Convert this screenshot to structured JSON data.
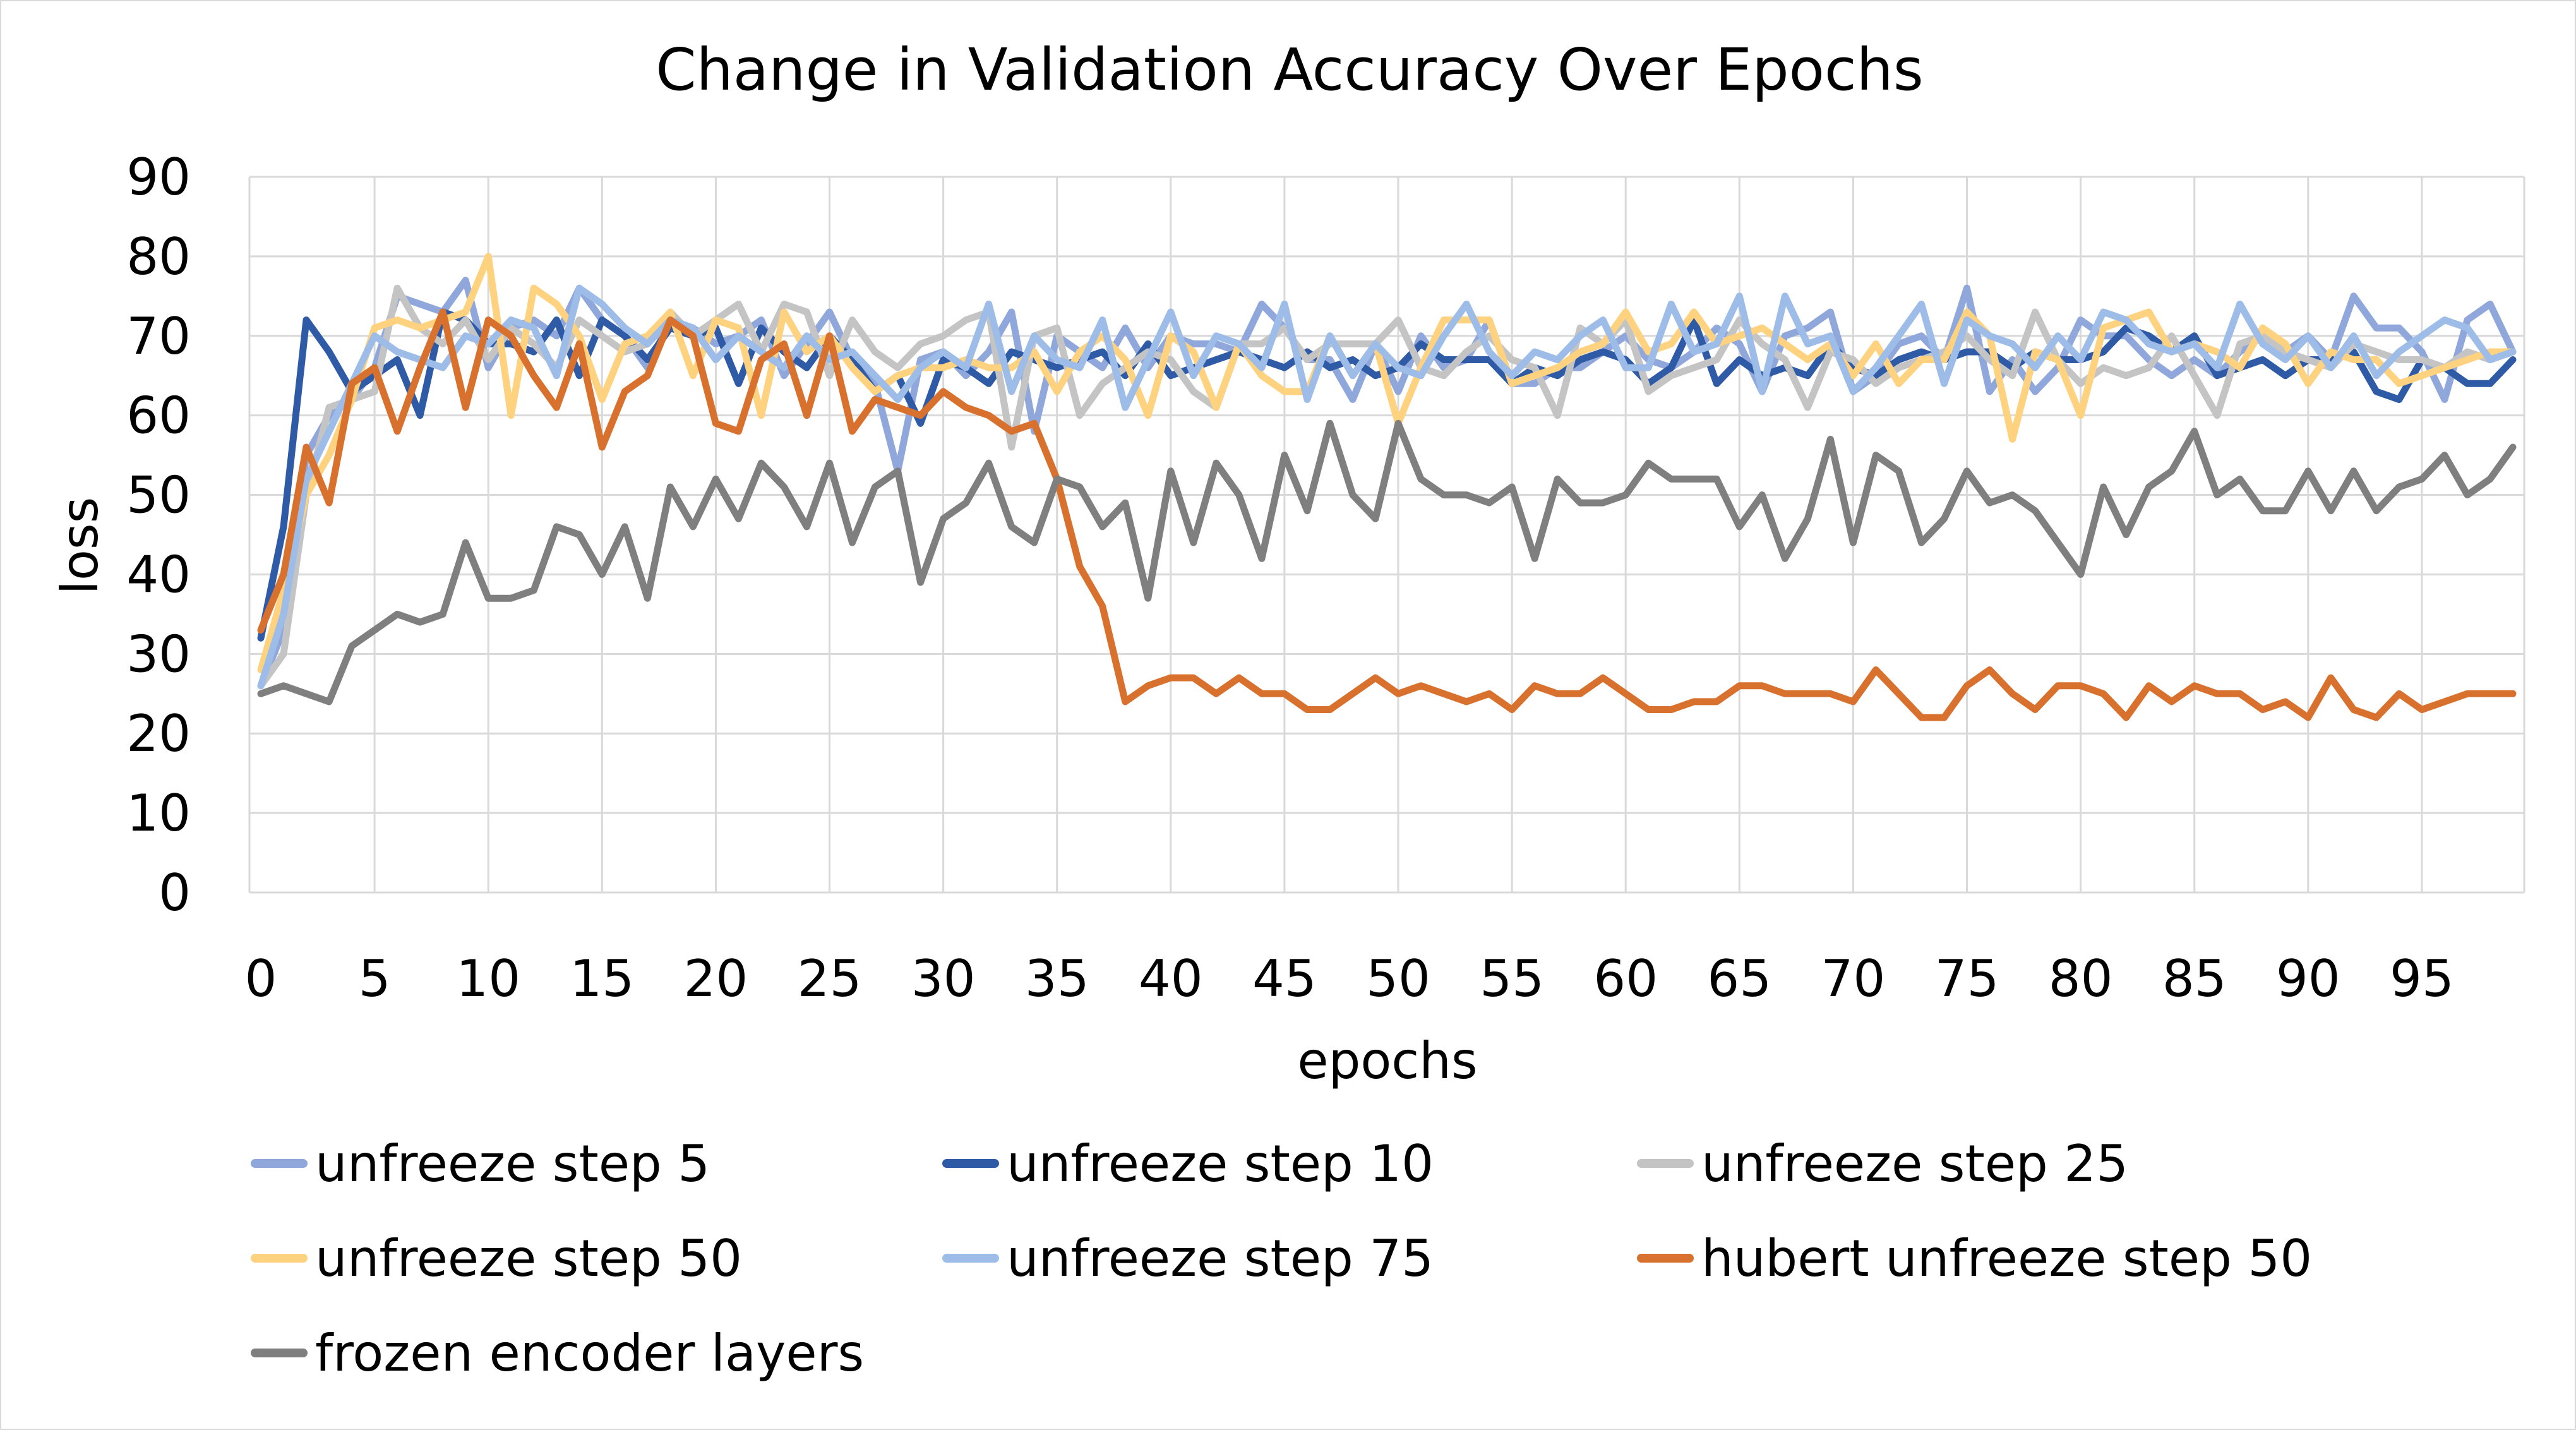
{
  "chart_data": {
    "type": "line",
    "title": "Change in Validation Accuracy Over Epochs",
    "xlabel": "epochs",
    "ylabel": "loss",
    "ylim": [
      0,
      90
    ],
    "yticks": [
      0,
      10,
      20,
      30,
      40,
      50,
      60,
      70,
      80,
      90
    ],
    "xlim": [
      0,
      99
    ],
    "xticks": [
      0,
      5,
      10,
      15,
      20,
      25,
      30,
      35,
      40,
      45,
      50,
      55,
      60,
      65,
      70,
      75,
      80,
      85,
      90,
      95
    ],
    "grid": true,
    "legend_position": "bottom",
    "series": [
      {
        "name": "unfreeze step 5",
        "color": "#8fa7da",
        "values": [
          26,
          33,
          55,
          60,
          62,
          66,
          75,
          74,
          73,
          77,
          66,
          71,
          72,
          70,
          76,
          72,
          70,
          66,
          72,
          71,
          69,
          70,
          72,
          65,
          69,
          73,
          67,
          64,
          53,
          67,
          68,
          65,
          68,
          73,
          58,
          70,
          68,
          66,
          71,
          66,
          70,
          69,
          69,
          68,
          74,
          71,
          67,
          67,
          62,
          69,
          63,
          70,
          66,
          67,
          72,
          64,
          64,
          66,
          66,
          68,
          70,
          67,
          66,
          68,
          71,
          69,
          63,
          70,
          71,
          73,
          63,
          65,
          69,
          70,
          67,
          76,
          63,
          67,
          63,
          66,
          72,
          70,
          70,
          67,
          65,
          67,
          65,
          68,
          70,
          68,
          70,
          67,
          75,
          71,
          71,
          68,
          62,
          72,
          74,
          68
        ]
      },
      {
        "name": "unfreeze step 10",
        "color": "#2e5aa6",
        "values": [
          32,
          46,
          72,
          68,
          63,
          65,
          67,
          60,
          73,
          72,
          69,
          69,
          68,
          72,
          65,
          72,
          70,
          67,
          71,
          70,
          71,
          64,
          71,
          68,
          66,
          70,
          67,
          63,
          65,
          59,
          67,
          66,
          64,
          68,
          67,
          66,
          67,
          68,
          65,
          69,
          65,
          66,
          67,
          68,
          67,
          66,
          68,
          66,
          67,
          65,
          66,
          69,
          67,
          67,
          67,
          64,
          66,
          65,
          67,
          68,
          67,
          64,
          66,
          72,
          64,
          67,
          65,
          66,
          65,
          69,
          66,
          65,
          67,
          68,
          67,
          68,
          68,
          66,
          68,
          67,
          67,
          68,
          71,
          70,
          68,
          70,
          65,
          66,
          67,
          65,
          67,
          67,
          68,
          63,
          62,
          67,
          66,
          64,
          64,
          67
        ]
      },
      {
        "name": "unfreeze step 25",
        "color": "#c4c4c4",
        "values": [
          26,
          30,
          50,
          61,
          62,
          63,
          76,
          71,
          69,
          72,
          67,
          71,
          69,
          66,
          72,
          70,
          68,
          69,
          73,
          70,
          72,
          74,
          68,
          74,
          73,
          65,
          72,
          68,
          66,
          69,
          70,
          72,
          73,
          56,
          70,
          71,
          60,
          64,
          66,
          68,
          67,
          63,
          61,
          69,
          69,
          71,
          67,
          69,
          69,
          69,
          72,
          66,
          65,
          68,
          70,
          67,
          66,
          60,
          71,
          69,
          72,
          63,
          65,
          66,
          67,
          72,
          69,
          67,
          61,
          68,
          67,
          64,
          66,
          67,
          68,
          70,
          67,
          65,
          73,
          67,
          64,
          66,
          65,
          66,
          70,
          65,
          60,
          69,
          70,
          68,
          67,
          66,
          69,
          68,
          67,
          67,
          66,
          68,
          67,
          68
        ]
      },
      {
        "name": "unfreeze step 50",
        "color": "#ffd27f",
        "values": [
          28,
          38,
          50,
          55,
          62,
          71,
          72,
          71,
          72,
          73,
          80,
          60,
          76,
          74,
          70,
          62,
          69,
          70,
          73,
          65,
          72,
          71,
          60,
          73,
          68,
          70,
          66,
          63,
          65,
          66,
          66,
          67,
          66,
          66,
          68,
          63,
          68,
          70,
          67,
          60,
          70,
          68,
          61,
          69,
          65,
          63,
          63,
          70,
          65,
          69,
          59,
          66,
          72,
          72,
          72,
          64,
          65,
          66,
          68,
          69,
          73,
          68,
          69,
          73,
          69,
          70,
          71,
          69,
          67,
          69,
          65,
          69,
          64,
          67,
          67,
          73,
          70,
          57,
          68,
          67,
          60,
          71,
          72,
          73,
          68,
          69,
          68,
          66,
          71,
          69,
          64,
          68,
          67,
          67,
          64,
          65,
          66,
          67,
          68,
          68
        ]
      },
      {
        "name": "unfreeze step 75",
        "color": "#9dbde8",
        "values": [
          26,
          35,
          52,
          58,
          64,
          70,
          68,
          67,
          66,
          70,
          69,
          72,
          71,
          65,
          76,
          74,
          71,
          69,
          72,
          71,
          67,
          70,
          68,
          66,
          70,
          67,
          68,
          65,
          62,
          66,
          68,
          66,
          74,
          63,
          70,
          67,
          66,
          72,
          61,
          67,
          73,
          65,
          70,
          69,
          66,
          74,
          62,
          70,
          65,
          69,
          66,
          65,
          70,
          74,
          68,
          65,
          68,
          67,
          70,
          72,
          66,
          66,
          74,
          68,
          69,
          75,
          63,
          75,
          69,
          70,
          63,
          66,
          70,
          74,
          64,
          72,
          70,
          69,
          66,
          70,
          67,
          73,
          72,
          69,
          68,
          69,
          66,
          74,
          69,
          67,
          70,
          66,
          70,
          65,
          68,
          70,
          72,
          71,
          67,
          68
        ]
      },
      {
        "name": "hubert unfreeze step 50",
        "color": "#d9712e",
        "values": [
          33,
          40,
          56,
          49,
          64,
          66,
          58,
          66,
          73,
          61,
          72,
          70,
          65,
          61,
          69,
          56,
          63,
          65,
          72,
          70,
          59,
          58,
          67,
          69,
          60,
          70,
          58,
          62,
          61,
          60,
          63,
          61,
          60,
          58,
          59,
          52,
          41,
          36,
          24,
          26,
          27,
          27,
          25,
          27,
          25,
          25,
          23,
          23,
          25,
          27,
          25,
          26,
          25,
          24,
          25,
          23,
          26,
          25,
          25,
          27,
          25,
          23,
          23,
          24,
          24,
          26,
          26,
          25,
          25,
          25,
          24,
          28,
          25,
          22,
          22,
          26,
          28,
          25,
          23,
          26,
          26,
          25,
          22,
          26,
          24,
          26,
          25,
          25,
          23,
          24,
          22,
          27,
          23,
          22,
          25,
          23,
          24,
          25,
          25,
          25
        ]
      },
      {
        "name": "frozen encoder layers",
        "color": "#7f7f7f",
        "values": [
          25,
          26,
          25,
          24,
          31,
          33,
          35,
          34,
          35,
          44,
          37,
          37,
          38,
          46,
          45,
          40,
          46,
          37,
          51,
          46,
          52,
          47,
          54,
          51,
          46,
          54,
          44,
          51,
          53,
          39,
          47,
          49,
          54,
          46,
          44,
          52,
          51,
          46,
          49,
          37,
          53,
          44,
          54,
          50,
          42,
          55,
          48,
          59,
          50,
          47,
          59,
          52,
          50,
          50,
          49,
          51,
          42,
          52,
          49,
          49,
          50,
          54,
          52,
          52,
          52,
          46,
          50,
          42,
          47,
          57,
          44,
          55,
          53,
          44,
          47,
          53,
          49,
          50,
          48,
          44,
          40,
          51,
          45,
          51,
          53,
          58,
          50,
          52,
          48,
          48,
          53,
          48,
          53,
          48,
          51,
          52,
          55,
          50,
          52,
          56
        ]
      }
    ]
  }
}
